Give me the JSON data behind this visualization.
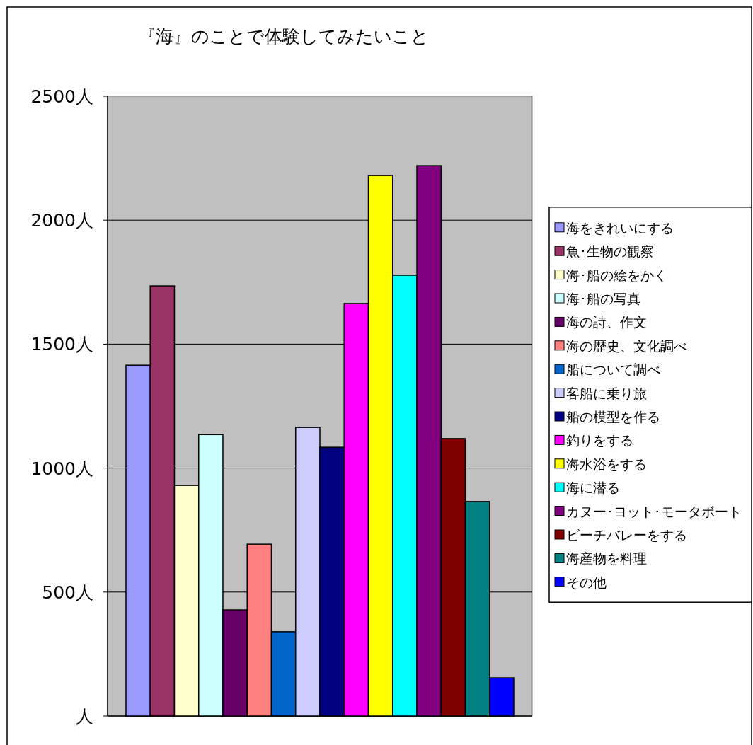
{
  "chart_data": {
    "type": "bar",
    "title": "『海』のことで体験してみたいこと",
    "categories": [
      null
    ],
    "ylim": [
      0,
      2500
    ],
    "yticks": [
      {
        "value": 0,
        "label": "人"
      },
      {
        "value": 500,
        "label": "500人"
      },
      {
        "value": 1000,
        "label": "1000人"
      },
      {
        "value": 1500,
        "label": "1500人"
      },
      {
        "value": 2000,
        "label": "2000人"
      },
      {
        "value": 2500,
        "label": "2500人"
      }
    ],
    "grid": "y",
    "legend": "right",
    "series": [
      {
        "name": "海をきれいにする",
        "color": "#9999ff",
        "values": [
          1415
        ]
      },
      {
        "name": "魚･生物の観察",
        "color": "#993366",
        "values": [
          1735
        ]
      },
      {
        "name": "海･船の絵をかく",
        "color": "#ffffcc",
        "values": [
          930
        ]
      },
      {
        "name": "海･船の写真",
        "color": "#ccffff",
        "values": [
          1135
        ]
      },
      {
        "name": "海の詩、作文",
        "color": "#660066",
        "values": [
          428
        ]
      },
      {
        "name": "海の歴史、文化調べ",
        "color": "#ff8080",
        "values": [
          693
        ]
      },
      {
        "name": "船について調べ",
        "color": "#0066cc",
        "values": [
          340
        ]
      },
      {
        "name": "客船に乗り旅",
        "color": "#ccccff",
        "values": [
          1164
        ]
      },
      {
        "name": "船の模型を作る",
        "color": "#000080",
        "values": [
          1084
        ]
      },
      {
        "name": "釣りをする",
        "color": "#ff00ff",
        "values": [
          1664
        ]
      },
      {
        "name": "海水浴をする",
        "color": "#ffff00",
        "values": [
          2180
        ]
      },
      {
        "name": "海に潜る",
        "color": "#00ffff",
        "values": [
          1778
        ]
      },
      {
        "name": "カヌー･ヨット･モータボート",
        "color": "#800080",
        "values": [
          2220
        ]
      },
      {
        "name": "ビーチバレーをする",
        "color": "#800000",
        "values": [
          1119
        ]
      },
      {
        "name": "海産物を料理",
        "color": "#008080",
        "values": [
          865
        ]
      },
      {
        "name": "その他",
        "color": "#0000ff",
        "values": [
          154
        ]
      }
    ]
  }
}
